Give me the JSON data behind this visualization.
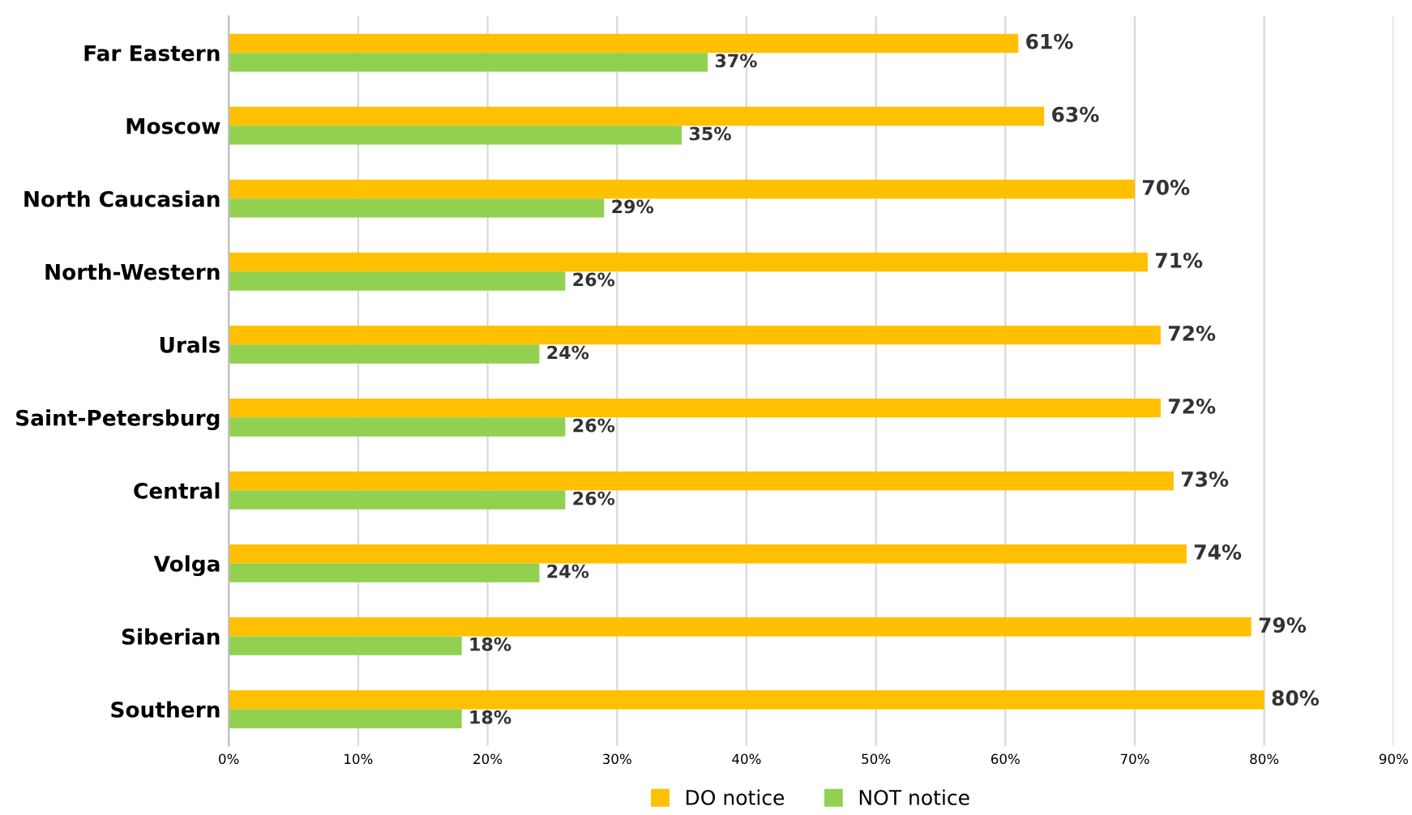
{
  "chart_data": {
    "type": "bar",
    "orientation": "horizontal",
    "categories": [
      "Far Eastern",
      "Moscow",
      "North Caucasian",
      "North-Western",
      "Urals",
      "Saint-Petersburg",
      "Central",
      "Volga",
      "Siberian",
      "Southern"
    ],
    "series": [
      {
        "name": "DO notice",
        "color": "#ffc000",
        "values": [
          61,
          63,
          70,
          71,
          72,
          72,
          73,
          74,
          79,
          80
        ],
        "value_labels": [
          "61%",
          "63%",
          "70%",
          "71%",
          "72%",
          "72%",
          "73%",
          "74%",
          "79%",
          "80%"
        ]
      },
      {
        "name": "NOT notice",
        "color": "#92d050",
        "values": [
          37,
          35,
          29,
          26,
          24,
          26,
          26,
          24,
          18,
          18
        ],
        "value_labels": [
          "37%",
          "35%",
          "29%",
          "26%",
          "24%",
          "26%",
          "26%",
          "24%",
          "18%",
          "18%"
        ]
      }
    ],
    "xlim": [
      0,
      90
    ],
    "xticks": [
      {
        "value": 0,
        "label": "0%"
      },
      {
        "value": 10,
        "label": "10%"
      },
      {
        "value": 20,
        "label": "20%"
      },
      {
        "value": 30,
        "label": "30%"
      },
      {
        "value": 40,
        "label": "40%"
      },
      {
        "value": 50,
        "label": "50%"
      },
      {
        "value": 60,
        "label": "60%"
      },
      {
        "value": 70,
        "label": "70%"
      },
      {
        "value": 80,
        "label": "80%"
      },
      {
        "value": 90,
        "label": "90%"
      }
    ],
    "grid": "x",
    "legend": "bottom"
  }
}
